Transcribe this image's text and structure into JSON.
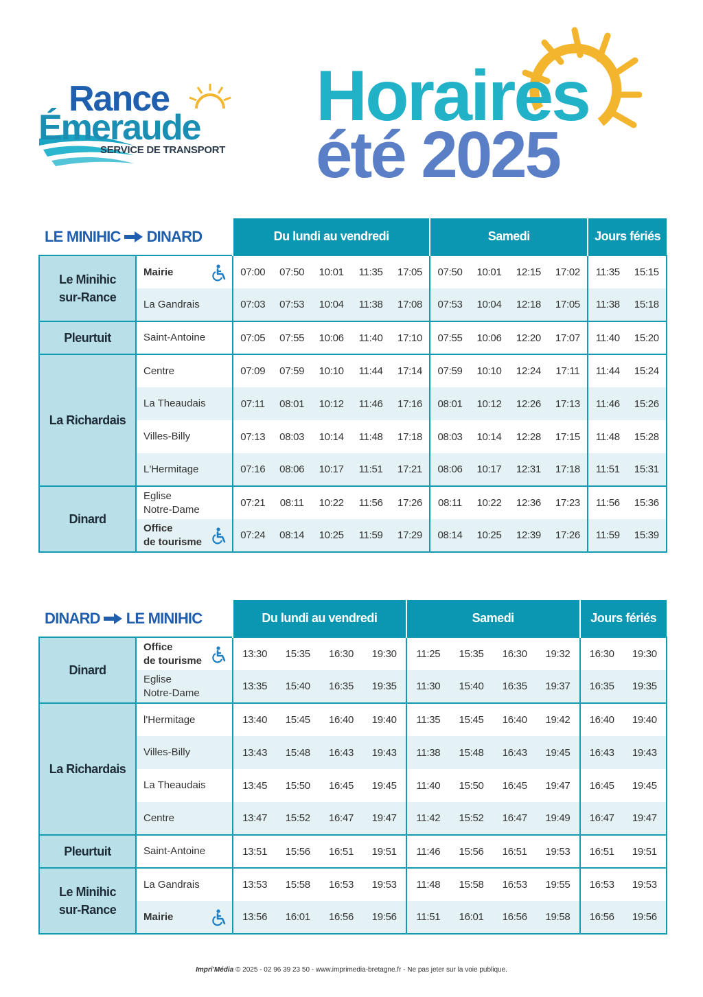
{
  "logo": {
    "line1": "Rance",
    "line2": "Émeraude",
    "tagline": "SERVICE DE TRANSPORT"
  },
  "title": {
    "line1": "Horaires",
    "line2": "été 2025"
  },
  "tables": [
    {
      "from": "LE MINIHIC",
      "to": "DINARD",
      "columns": [
        "Du lundi au vendredi",
        "Samedi",
        "Jours fériés"
      ],
      "rows": [
        {
          "town": "Le Minihic\nsur-Rance",
          "stops": [
            {
              "name": "Mairie",
              "bold": true,
              "accessible": true,
              "times": [
                [
                  "07:00",
                  "07:50",
                  "10:01",
                  "11:35",
                  "17:05"
                ],
                [
                  "07:50",
                  "10:01",
                  "12:15",
                  "17:02"
                ],
                [
                  "11:35",
                  "15:15"
                ]
              ]
            },
            {
              "name": "La Gandrais",
              "times": [
                [
                  "07:03",
                  "07:53",
                  "10:04",
                  "11:38",
                  "17:08"
                ],
                [
                  "07:53",
                  "10:04",
                  "12:18",
                  "17:05"
                ],
                [
                  "11:38",
                  "15:18"
                ]
              ]
            }
          ]
        },
        {
          "town": "Pleurtuit",
          "stops": [
            {
              "name": "Saint-Antoine",
              "times": [
                [
                  "07:05",
                  "07:55",
                  "10:06",
                  "11:40",
                  "17:10"
                ],
                [
                  "07:55",
                  "10:06",
                  "12:20",
                  "17:07"
                ],
                [
                  "11:40",
                  "15:20"
                ]
              ]
            }
          ]
        },
        {
          "town": "La Richardais",
          "stops": [
            {
              "name": "Centre",
              "times": [
                [
                  "07:09",
                  "07:59",
                  "10:10",
                  "11:44",
                  "17:14"
                ],
                [
                  "07:59",
                  "10:10",
                  "12:24",
                  "17:11"
                ],
                [
                  "11:44",
                  "15:24"
                ]
              ]
            },
            {
              "name": "La Theaudais",
              "times": [
                [
                  "07:11",
                  "08:01",
                  "10:12",
                  "11:46",
                  "17:16"
                ],
                [
                  "08:01",
                  "10:12",
                  "12:26",
                  "17:13"
                ],
                [
                  "11:46",
                  "15:26"
                ]
              ]
            },
            {
              "name": "Villes-Billy",
              "times": [
                [
                  "07:13",
                  "08:03",
                  "10:14",
                  "11:48",
                  "17:18"
                ],
                [
                  "08:03",
                  "10:14",
                  "12:28",
                  "17:15"
                ],
                [
                  "11:48",
                  "15:28"
                ]
              ]
            },
            {
              "name": "L'Hermitage",
              "times": [
                [
                  "07:16",
                  "08:06",
                  "10:17",
                  "11:51",
                  "17:21"
                ],
                [
                  "08:06",
                  "10:17",
                  "12:31",
                  "17:18"
                ],
                [
                  "11:51",
                  "15:31"
                ]
              ]
            }
          ]
        },
        {
          "town": "Dinard",
          "stops": [
            {
              "name": "Eglise\nNotre-Dame",
              "times": [
                [
                  "07:21",
                  "08:11",
                  "10:22",
                  "11:56",
                  "17:26"
                ],
                [
                  "08:11",
                  "10:22",
                  "12:36",
                  "17:23"
                ],
                [
                  "11:56",
                  "15:36"
                ]
              ]
            },
            {
              "name": "Office\nde tourisme",
              "bold": true,
              "accessible": true,
              "times": [
                [
                  "07:24",
                  "08:14",
                  "10:25",
                  "11:59",
                  "17:29"
                ],
                [
                  "08:14",
                  "10:25",
                  "12:39",
                  "17:26"
                ],
                [
                  "11:59",
                  "15:39"
                ]
              ]
            }
          ]
        }
      ]
    },
    {
      "from": "DINARD",
      "to": "LE MINIHIC",
      "columns": [
        "Du lundi au vendredi",
        "Samedi",
        "Jours fériés"
      ],
      "rows": [
        {
          "town": "Dinard",
          "stops": [
            {
              "name": "Office\nde tourisme",
              "bold": true,
              "accessible": true,
              "times": [
                [
                  "13:30",
                  "15:35",
                  "16:30",
                  "19:30"
                ],
                [
                  "11:25",
                  "15:35",
                  "16:30",
                  "19:32"
                ],
                [
                  "16:30",
                  "19:30"
                ]
              ]
            },
            {
              "name": "Eglise\nNotre-Dame",
              "times": [
                [
                  "13:35",
                  "15:40",
                  "16:35",
                  "19:35"
                ],
                [
                  "11:30",
                  "15:40",
                  "16:35",
                  "19:37"
                ],
                [
                  "16:35",
                  "19:35"
                ]
              ]
            }
          ]
        },
        {
          "town": "La Richardais",
          "stops": [
            {
              "name": "l'Hermitage",
              "times": [
                [
                  "13:40",
                  "15:45",
                  "16:40",
                  "19:40"
                ],
                [
                  "11:35",
                  "15:45",
                  "16:40",
                  "19:42"
                ],
                [
                  "16:40",
                  "19:40"
                ]
              ]
            },
            {
              "name": "Villes-Billy",
              "times": [
                [
                  "13:43",
                  "15:48",
                  "16:43",
                  "19:43"
                ],
                [
                  "11:38",
                  "15:48",
                  "16:43",
                  "19:45"
                ],
                [
                  "16:43",
                  "19:43"
                ]
              ]
            },
            {
              "name": "La Theaudais",
              "times": [
                [
                  "13:45",
                  "15:50",
                  "16:45",
                  "19:45"
                ],
                [
                  "11:40",
                  "15:50",
                  "16:45",
                  "19:47"
                ],
                [
                  "16:45",
                  "19:45"
                ]
              ]
            },
            {
              "name": "Centre",
              "times": [
                [
                  "13:47",
                  "15:52",
                  "16:47",
                  "19:47"
                ],
                [
                  "11:42",
                  "15:52",
                  "16:47",
                  "19:49"
                ],
                [
                  "16:47",
                  "19:47"
                ]
              ]
            }
          ]
        },
        {
          "town": "Pleurtuit",
          "stops": [
            {
              "name": "Saint-Antoine",
              "times": [
                [
                  "13:51",
                  "15:56",
                  "16:51",
                  "19:51"
                ],
                [
                  "11:46",
                  "15:56",
                  "16:51",
                  "19:53"
                ],
                [
                  "16:51",
                  "19:51"
                ]
              ]
            }
          ]
        },
        {
          "town": "Le Minihic\nsur-Rance",
          "stops": [
            {
              "name": "La Gandrais",
              "times": [
                [
                  "13:53",
                  "15:58",
                  "16:53",
                  "19:53"
                ],
                [
                  "11:48",
                  "15:58",
                  "16:53",
                  "19:55"
                ],
                [
                  "16:53",
                  "19:53"
                ]
              ]
            },
            {
              "name": "Mairie",
              "bold": true,
              "accessible": true,
              "times": [
                [
                  "13:56",
                  "16:01",
                  "16:56",
                  "19:56"
                ],
                [
                  "11:51",
                  "16:01",
                  "16:56",
                  "19:58"
                ],
                [
                  "16:56",
                  "19:56"
                ]
              ]
            }
          ]
        }
      ]
    }
  ],
  "footer": {
    "brand": "Impri'Média",
    "text": "© 2025 - 02 96 39 23 50 - www.imprimedia-bretagne.fr - Ne pas jeter sur la voie publique."
  }
}
